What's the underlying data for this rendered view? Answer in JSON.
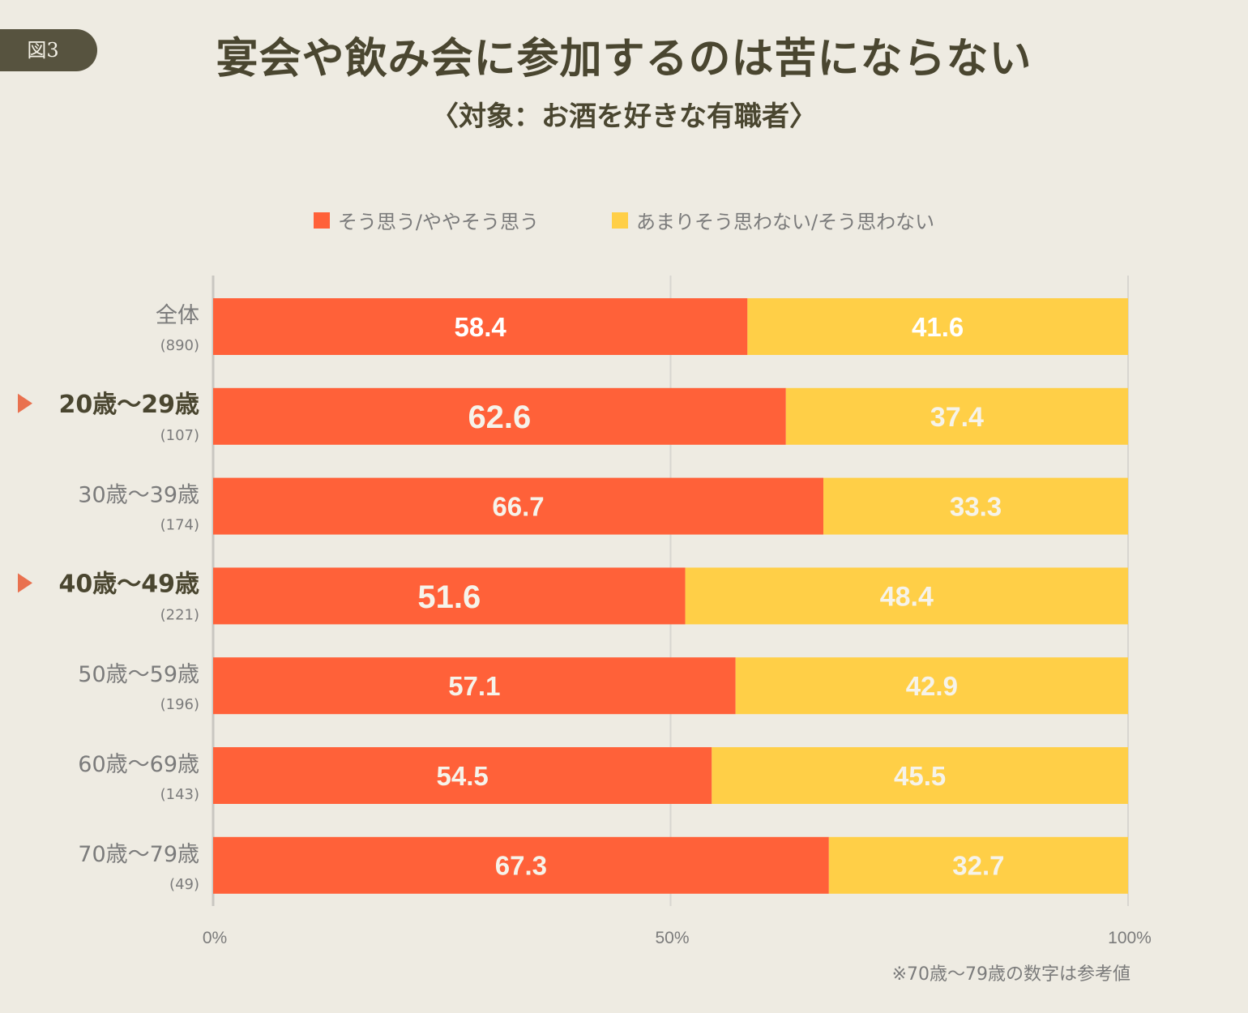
{
  "figure_badge": "図3",
  "title": "宴会や飲み会に参加するのは苦にならない",
  "subtitle": "〈対象：お酒を好きな有職者〉",
  "note": "※70歳〜79歳の数字は参考値",
  "colors": {
    "agree": "#ff6139",
    "disagree": "#ffcf47",
    "highlight_marker": "#e9714f",
    "label_dark": "#4a4630",
    "label_gray": "#7b7b7b",
    "bar_text": "#f6f3ea",
    "grid": "#d8d6d0"
  },
  "chart_data": {
    "type": "bar",
    "orientation": "horizontal",
    "stacked": true,
    "title": "宴会や飲み会に参加するのは苦にならない",
    "subtitle": "〈対象：お酒を好きな有職者〉",
    "xlabel": "",
    "ylabel": "",
    "xlim": [
      0,
      100
    ],
    "x_ticks": [
      "0%",
      "50%",
      "100%"
    ],
    "grid": true,
    "legend_position": "top-center",
    "categories": [
      "全体",
      "20歳〜29歳",
      "30歳〜39歳",
      "40歳〜49歳",
      "50歳〜59歳",
      "60歳〜69歳",
      "70歳〜79歳"
    ],
    "sample_sizes": [
      "(890)",
      "(107)",
      "(174)",
      "(221)",
      "(196)",
      "(143)",
      "(49)"
    ],
    "highlighted": [
      false,
      true,
      false,
      true,
      false,
      false,
      false
    ],
    "series": [
      {
        "name": "そう思う/ややそう思う",
        "values": [
          58.4,
          62.6,
          66.7,
          51.6,
          57.1,
          54.5,
          67.3
        ]
      },
      {
        "name": "あまりそう思わない/そう思わない",
        "values": [
          41.6,
          37.4,
          33.3,
          48.4,
          42.9,
          45.5,
          32.7
        ]
      }
    ]
  }
}
